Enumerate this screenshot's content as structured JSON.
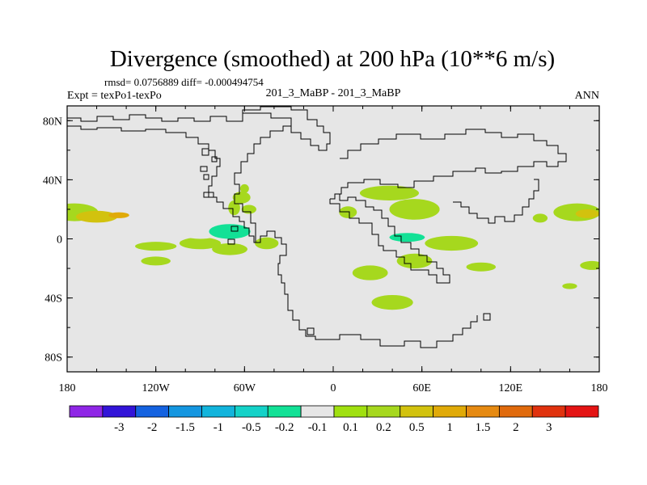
{
  "chart_data": {
    "type": "heatmap",
    "title": "Divergence (smoothed) at 200 hPa (10**6 m/s)",
    "stats_text": "rmsd= 0.0756889 diff= -0.000494754",
    "left_label": "Expt = texPo1-texPo",
    "center_label": "201_3_MaBP - 201_3_MaBP",
    "right_label": "ANN",
    "x_axis": {
      "range": [
        -180,
        180
      ],
      "ticks": [
        {
          "value": -180,
          "label": "180"
        },
        {
          "value": -120,
          "label": "120W"
        },
        {
          "value": -60,
          "label": "60W"
        },
        {
          "value": 0,
          "label": "0"
        },
        {
          "value": 60,
          "label": "60E"
        },
        {
          "value": 120,
          "label": "120E"
        },
        {
          "value": 180,
          "label": "180"
        }
      ]
    },
    "y_axis": {
      "range": [
        -90,
        90
      ],
      "ticks": [
        {
          "value": 80,
          "label": "80N"
        },
        {
          "value": 40,
          "label": "40N"
        },
        {
          "value": 0,
          "label": "0"
        },
        {
          "value": -40,
          "label": "40S"
        },
        {
          "value": -80,
          "label": "80S"
        }
      ]
    },
    "background_value_range": [
      -0.1,
      0.1
    ],
    "colorbar": {
      "colors": [
        "#8f26e6",
        "#3214d8",
        "#1462e0",
        "#1496e0",
        "#12b4dc",
        "#14d2c8",
        "#12e196",
        "#e6e6e6",
        "#a0e010",
        "#a6d81e",
        "#d2c20e",
        "#e0aa08",
        "#e68a12",
        "#e06a0c",
        "#e0320e",
        "#e41414"
      ],
      "labels": [
        "-3",
        "-2",
        "-1.5",
        "-1",
        "-0.5",
        "-0.2",
        "-0.1",
        "0.1",
        "0.2",
        "0.5",
        "1",
        "1.5",
        "2",
        "3"
      ]
    },
    "regions": [
      {
        "lon": -175,
        "lat": 18,
        "rx": 16,
        "ry": 6,
        "value": 0.2
      },
      {
        "lon": -160,
        "lat": 15,
        "rx": 14,
        "ry": 4,
        "value": 0.5
      },
      {
        "lon": -145,
        "lat": 16,
        "rx": 7,
        "ry": 2,
        "value": 1
      },
      {
        "lon": -170,
        "lat": 3,
        "rx": 12,
        "ry": 4,
        "value": -0.1
      },
      {
        "lon": -130,
        "lat": 1,
        "rx": 24,
        "ry": 5,
        "value": -0.1
      },
      {
        "lon": -120,
        "lat": -5,
        "rx": 14,
        "ry": 3,
        "value": 0.2
      },
      {
        "lon": -90,
        "lat": -3,
        "rx": 14,
        "ry": 4,
        "value": 0.2
      },
      {
        "lon": -120,
        "lat": -15,
        "rx": 10,
        "ry": 3,
        "value": 0.2
      },
      {
        "lon": -70,
        "lat": -7,
        "rx": 12,
        "ry": 4,
        "value": 0.2
      },
      {
        "lon": -90,
        "lat": 6,
        "rx": 16,
        "ry": 6,
        "value": -0.1
      },
      {
        "lon": -70,
        "lat": 5,
        "rx": 14,
        "ry": 5,
        "value": -0.2
      },
      {
        "lon": -67,
        "lat": 21,
        "rx": 4,
        "ry": 5,
        "value": 0.2
      },
      {
        "lon": -62,
        "lat": 28,
        "rx": 6,
        "ry": 4,
        "value": 0.2
      },
      {
        "lon": -57,
        "lat": 20,
        "rx": 5,
        "ry": 3,
        "value": 0.2
      },
      {
        "lon": -60,
        "lat": 34,
        "rx": 3,
        "ry": 3,
        "value": 0.2
      },
      {
        "lon": -35,
        "lat": 7,
        "rx": 16,
        "ry": 5,
        "value": -0.1
      },
      {
        "lon": -45,
        "lat": -3,
        "rx": 8,
        "ry": 4,
        "value": 0.2
      },
      {
        "lon": -38,
        "lat": 45,
        "rx": 8,
        "ry": 5,
        "value": -0.1
      },
      {
        "lon": -8,
        "lat": 15,
        "rx": 4,
        "ry": 3,
        "value": -0.1
      },
      {
        "lon": -33,
        "lat": -49,
        "rx": 3,
        "ry": 2,
        "value": -0.1
      },
      {
        "lon": -85,
        "lat": -33,
        "rx": 4,
        "ry": 2,
        "value": -0.1
      },
      {
        "lon": -144,
        "lat": -32,
        "rx": 5,
        "ry": 3,
        "value": -0.1
      },
      {
        "lon": 10,
        "lat": 18,
        "rx": 6,
        "ry": 4,
        "value": 0.2
      },
      {
        "lon": 38,
        "lat": 31,
        "rx": 20,
        "ry": 5,
        "value": 0.2
      },
      {
        "lon": 55,
        "lat": 20,
        "rx": 17,
        "ry": 7,
        "value": 0.2
      },
      {
        "lon": 50,
        "lat": 0,
        "rx": 28,
        "ry": 7,
        "value": -0.1
      },
      {
        "lon": 50,
        "lat": 1,
        "rx": 12,
        "ry": 3,
        "value": -0.2
      },
      {
        "lon": 68,
        "lat": -7,
        "rx": 22,
        "ry": 5,
        "value": -0.1
      },
      {
        "lon": 80,
        "lat": -3,
        "rx": 18,
        "ry": 5,
        "value": 0.2
      },
      {
        "lon": 55,
        "lat": -15,
        "rx": 12,
        "ry": 5,
        "value": 0.2
      },
      {
        "lon": 25,
        "lat": -23,
        "rx": 12,
        "ry": 5,
        "value": 0.2
      },
      {
        "lon": 40,
        "lat": -43,
        "rx": 14,
        "ry": 5,
        "value": 0.2
      },
      {
        "lon": 125,
        "lat": -3,
        "rx": 22,
        "ry": 5,
        "value": -0.1
      },
      {
        "lon": 160,
        "lat": 2,
        "rx": 20,
        "ry": 5,
        "value": -0.1
      },
      {
        "lon": 165,
        "lat": 18,
        "rx": 16,
        "ry": 6,
        "value": 0.2
      },
      {
        "lon": 172,
        "lat": 17,
        "rx": 8,
        "ry": 3,
        "value": 0.5
      },
      {
        "lon": 100,
        "lat": -19,
        "rx": 10,
        "ry": 3,
        "value": 0.2
      },
      {
        "lon": 175,
        "lat": -18,
        "rx": 8,
        "ry": 3,
        "value": 0.2
      },
      {
        "lon": 45,
        "lat": 45,
        "rx": 8,
        "ry": 4,
        "value": -0.1
      },
      {
        "lon": 78,
        "lat": 46,
        "rx": 8,
        "ry": 4,
        "value": -0.1
      },
      {
        "lon": 140,
        "lat": 14,
        "rx": 5,
        "ry": 3,
        "value": 0.2
      },
      {
        "lon": 170,
        "lat": 41,
        "rx": 5,
        "ry": 2,
        "value": -0.1
      },
      {
        "lon": 178,
        "lat": 32,
        "rx": 4,
        "ry": 2,
        "value": -0.1
      },
      {
        "lon": -172,
        "lat": -32,
        "rx": 6,
        "ry": 3,
        "value": -0.1
      },
      {
        "lon": 105,
        "lat": -52,
        "rx": 3,
        "ry": 2,
        "value": -0.1
      },
      {
        "lon": 125,
        "lat": -38,
        "rx": 3,
        "ry": 2,
        "value": -0.1
      },
      {
        "lon": 160,
        "lat": -32,
        "rx": 5,
        "ry": 2,
        "value": 0.2
      },
      {
        "lon": -90,
        "lat": 34,
        "rx": 3,
        "ry": 2,
        "value": -0.1
      }
    ]
  }
}
